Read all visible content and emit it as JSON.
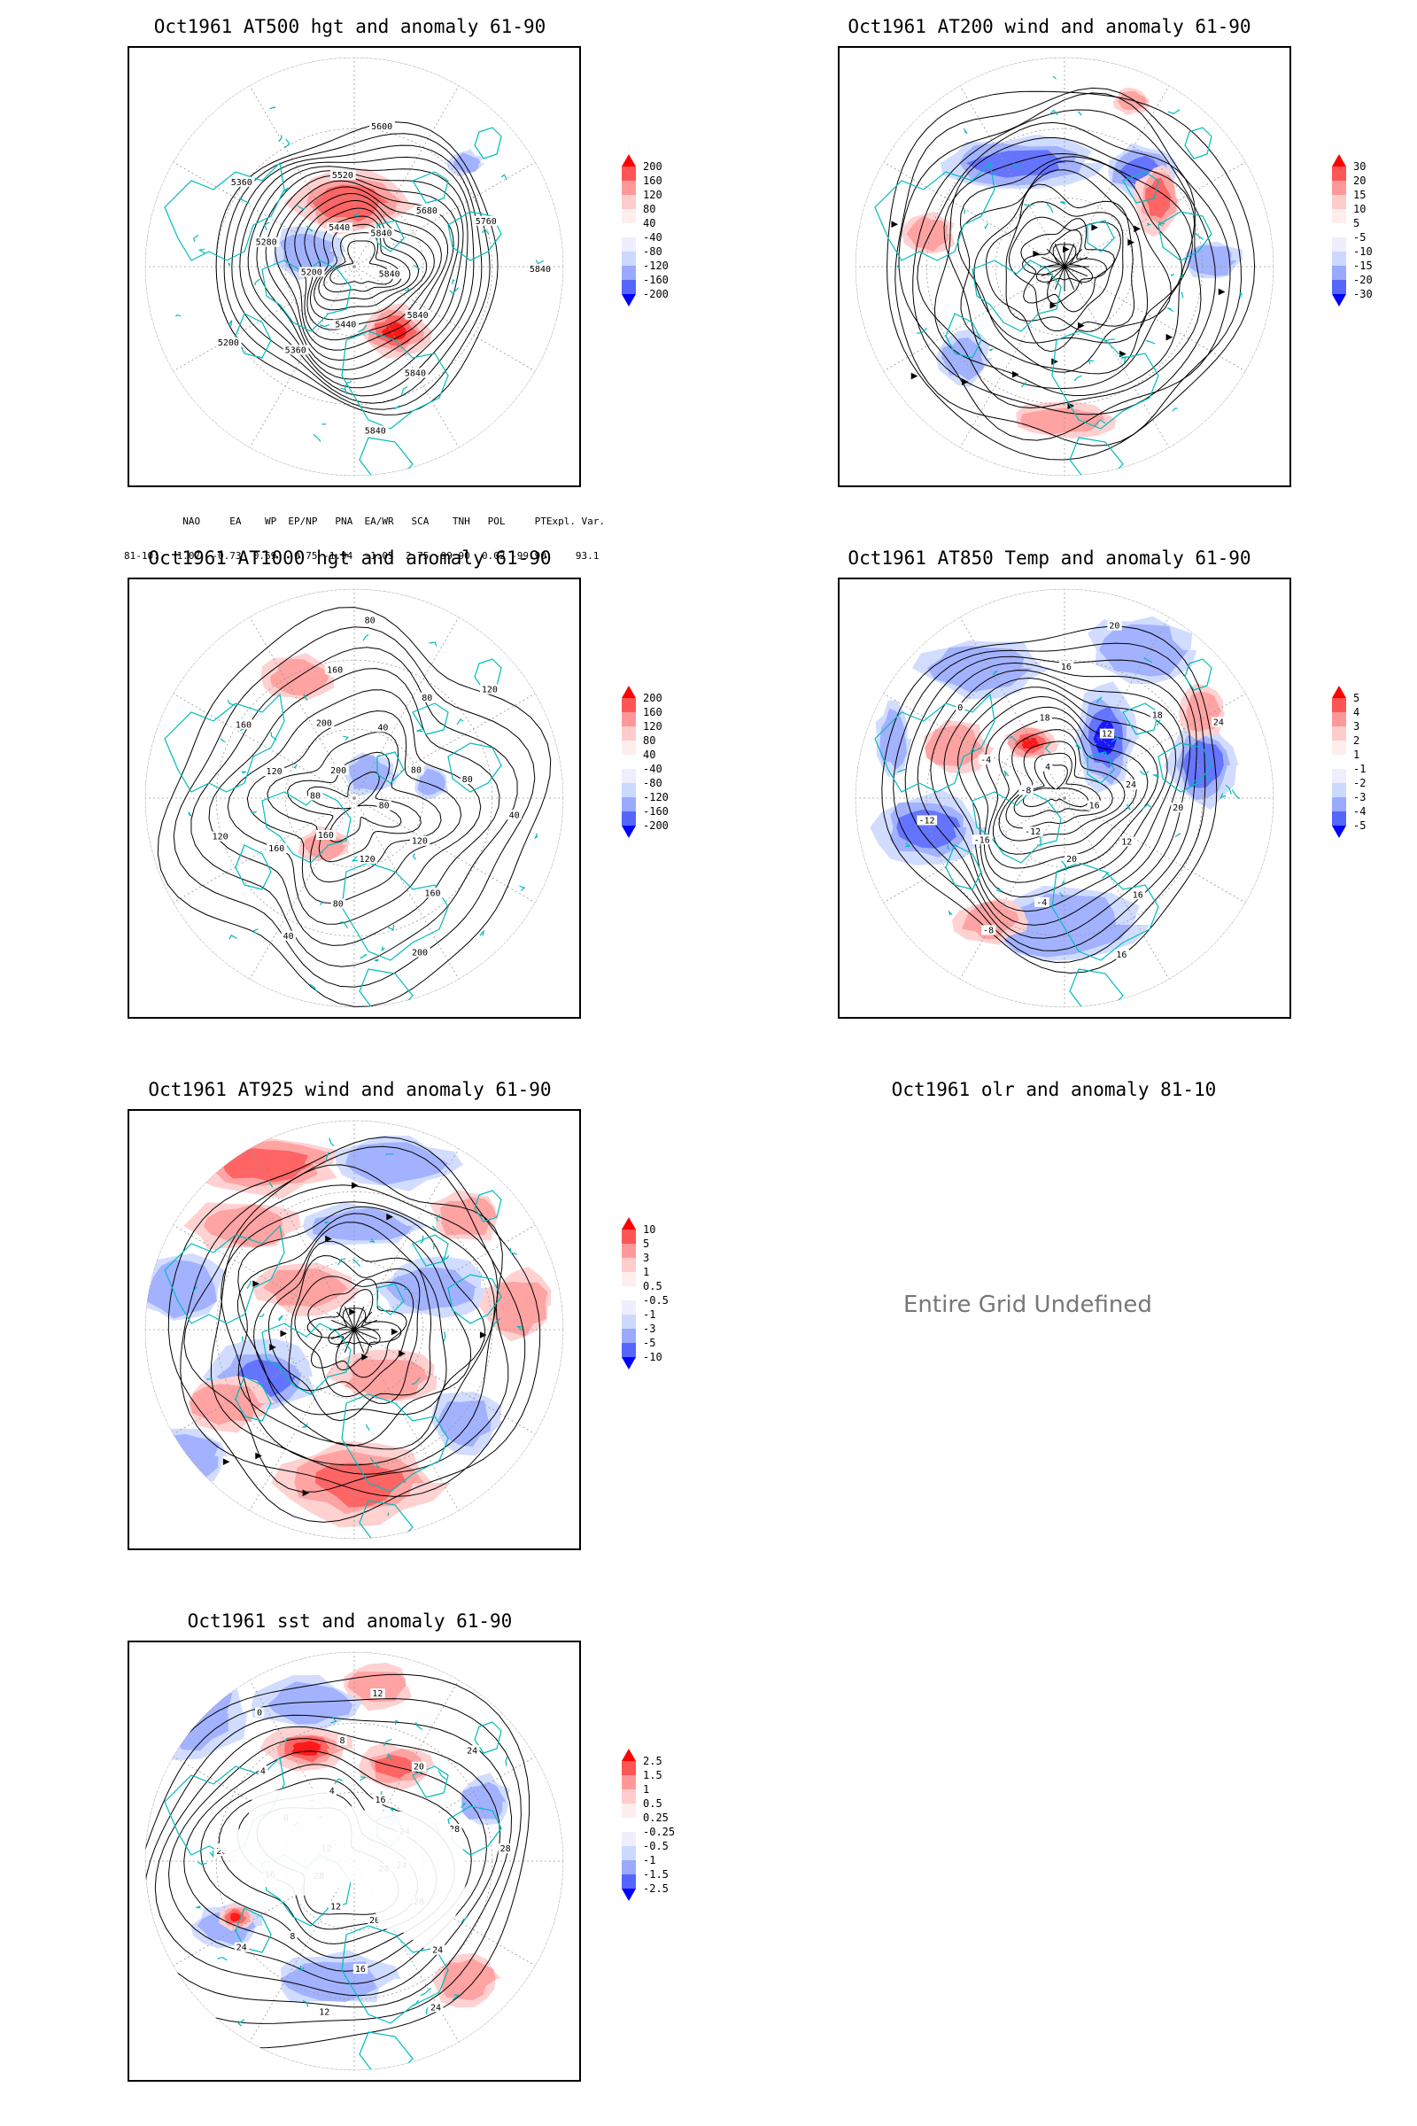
{
  "panels": [
    {
      "title": "Oct1961 AT500 hgt and anomaly 61-90",
      "contour_labels": [
        "5840",
        "5840",
        "5840",
        "5840",
        "5440",
        "5360",
        "5200",
        "5200",
        "5280",
        "5360",
        "5440",
        "5520",
        "5600",
        "5840",
        "5680",
        "5760",
        "5840"
      ],
      "colorbar": [
        "200",
        "160",
        "120",
        "80",
        "40",
        "-40",
        "-80",
        "-120",
        "-160",
        "-200"
      ]
    },
    {
      "title": "Oct1961 AT200 wind and anomaly 61-90",
      "colorbar": [
        "30",
        "20",
        "15",
        "10",
        "5",
        "-5",
        "-10",
        "-15",
        "-20",
        "-30"
      ]
    },
    {
      "title": "Oct1961 AT1000 hgt and anomaly 61-90",
      "contour_labels": [
        "80",
        "120",
        "160",
        "200",
        "120",
        "80",
        "40",
        "160",
        "160",
        "120",
        "80",
        "120",
        "160",
        "200",
        "200",
        "160",
        "80",
        "40",
        "80",
        "120",
        "80",
        "80",
        "40"
      ],
      "colorbar": [
        "200",
        "160",
        "120",
        "80",
        "40",
        "-40",
        "-80",
        "-120",
        "-160",
        "-200"
      ]
    },
    {
      "title": "Oct1961 AT850 Temp and anomaly 61-90",
      "contour_labels": [
        "16",
        "12",
        "16",
        "16",
        "20",
        "-4",
        "-8",
        "-12",
        "-16",
        "-12",
        "-8",
        "-4",
        "0",
        "4",
        "18",
        "16",
        "20",
        "12",
        "18",
        "24",
        "24",
        "20"
      ],
      "colorbar": [
        "5",
        "4",
        "3",
        "2",
        "1",
        "-1",
        "-2",
        "-3",
        "-4",
        "-5"
      ]
    },
    {
      "title": "Oct1961 AT925 wind and anomaly 61-90",
      "colorbar": [
        "10",
        "5",
        "3",
        "1",
        "0.5",
        "-0.5",
        "-1",
        "-3",
        "-5",
        "-10"
      ]
    },
    {
      "title": "Oct1961 olr and anomaly 81-10",
      "message": "Entire Grid Undefined"
    },
    {
      "title": "Oct1961 sst and anomaly 61-90",
      "contour_labels": [
        "28",
        "28",
        "24",
        "24",
        "20",
        "16",
        "12",
        "12",
        "8",
        "24",
        "28",
        "16",
        "20",
        "12",
        "8",
        "4",
        "0",
        "4",
        "8",
        "12",
        "16",
        "20",
        "24",
        "24",
        "28",
        "28",
        "24"
      ],
      "colorbar": [
        "2.5",
        "1.5",
        "1",
        "0.5",
        "0.25",
        "-0.25",
        "-0.5",
        "-1",
        "-1.5",
        "-2.5"
      ]
    }
  ],
  "teleconnection": {
    "headers": [
      "NAO",
      "EA",
      "WP",
      "EP/NP",
      "PNA",
      "EA/WR",
      "SCA",
      "TNH",
      "POL",
      "PT",
      "Expl. Var."
    ],
    "row_label": "81-10:",
    "values": [
      "1.07",
      "-0.73",
      "0.69",
      "-0.75",
      "-1.94",
      "-1.05",
      "2.75",
      "-99.90",
      "0.02",
      "-99.90",
      "93.1"
    ]
  },
  "colors": {
    "positive": "#ff0000",
    "negative": "#0000ff",
    "coast": "#00bbbb",
    "contour": "#000000"
  }
}
